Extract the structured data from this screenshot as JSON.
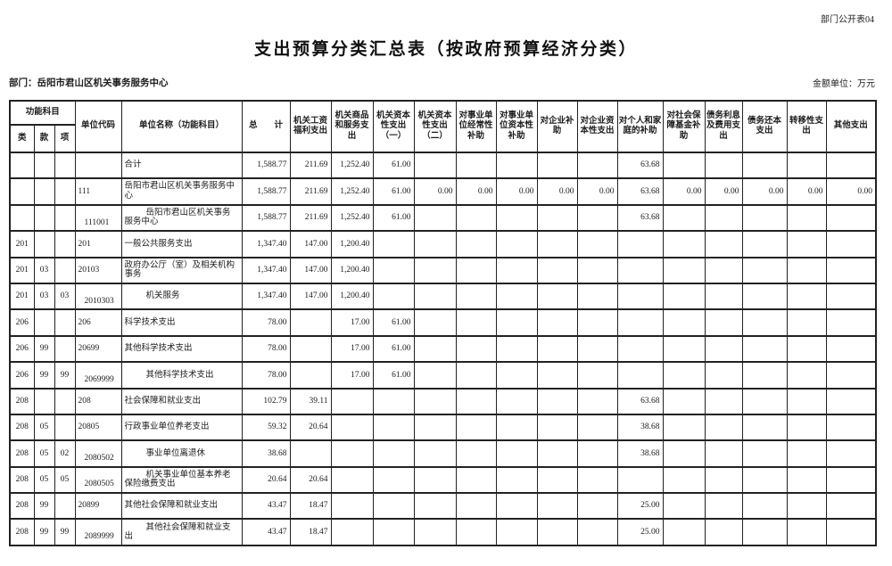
{
  "page": {
    "doc_label": "部门公开表04",
    "title": "支出预算分类汇总表（按政府预算经济分类）",
    "department": "部门：岳阳市君山区机关事务服务中心",
    "unit_note": "金额单位：万元"
  },
  "table": {
    "func_group_label": "功能科目",
    "func_cols": [
      "类",
      "款",
      "项"
    ],
    "columns": [
      "单位代码",
      "单位名称（功能科目）",
      "总　　计",
      "机关工资福利支出",
      "机关商品和服务支出",
      "机关资本性支出（一）",
      "机关资本性支出（二）",
      "对事业单位经常性补助",
      "对事业单位资本性补助",
      "对企业补助",
      "对企业资本性支出",
      "对个人和家庭的补助",
      "对社会保障基金补助",
      "债务利息及费用支出",
      "债务还本支出",
      "转移性支出",
      "其他支出"
    ],
    "rows": [
      {
        "lei": "",
        "kuan": "",
        "xiang": "",
        "code": "",
        "name": "合计",
        "indent": false,
        "values": [
          "1,588.77",
          "211.69",
          "1,252.40",
          "61.00",
          "",
          "",
          "",
          "",
          "",
          "63.68",
          "",
          "",
          "",
          "",
          ""
        ]
      },
      {
        "lei": "",
        "kuan": "",
        "xiang": "",
        "code": "111",
        "name": "岳阳市君山区机关事务服务中心",
        "indent": false,
        "values": [
          "1,588.77",
          "211.69",
          "1,252.40",
          "61.00",
          "0.00",
          "0.00",
          "0.00",
          "0.00",
          "0.00",
          "63.68",
          "0.00",
          "0.00",
          "0.00",
          "0.00",
          "0.00"
        ]
      },
      {
        "lei": "",
        "kuan": "",
        "xiang": "",
        "code": "111001",
        "name": "岳阳市君山区机关事务服务中心",
        "indent": true,
        "values": [
          "1,588.77",
          "211.69",
          "1,252.40",
          "61.00",
          "",
          "",
          "",
          "",
          "",
          "63.68",
          "",
          "",
          "",
          "",
          ""
        ]
      },
      {
        "lei": "201",
        "kuan": "",
        "xiang": "",
        "code": "201",
        "name": "一般公共服务支出",
        "indent": false,
        "values": [
          "1,347.40",
          "147.00",
          "1,200.40",
          "",
          "",
          "",
          "",
          "",
          "",
          "",
          "",
          "",
          "",
          "",
          ""
        ]
      },
      {
        "lei": "201",
        "kuan": "03",
        "xiang": "",
        "code": "20103",
        "name": "政府办公厅（室）及相关机构事务",
        "indent": false,
        "values": [
          "1,347.40",
          "147.00",
          "1,200.40",
          "",
          "",
          "",
          "",
          "",
          "",
          "",
          "",
          "",
          "",
          "",
          ""
        ]
      },
      {
        "lei": "201",
        "kuan": "03",
        "xiang": "03",
        "code": "2010303",
        "name": "机关服务",
        "indent": true,
        "values": [
          "1,347.40",
          "147.00",
          "1,200.40",
          "",
          "",
          "",
          "",
          "",
          "",
          "",
          "",
          "",
          "",
          "",
          ""
        ]
      },
      {
        "lei": "206",
        "kuan": "",
        "xiang": "",
        "code": "206",
        "name": "科学技术支出",
        "indent": false,
        "values": [
          "78.00",
          "",
          "17.00",
          "61.00",
          "",
          "",
          "",
          "",
          "",
          "",
          "",
          "",
          "",
          "",
          ""
        ]
      },
      {
        "lei": "206",
        "kuan": "99",
        "xiang": "",
        "code": "20699",
        "name": "其他科学技术支出",
        "indent": false,
        "values": [
          "78.00",
          "",
          "17.00",
          "61.00",
          "",
          "",
          "",
          "",
          "",
          "",
          "",
          "",
          "",
          "",
          ""
        ]
      },
      {
        "lei": "206",
        "kuan": "99",
        "xiang": "99",
        "code": "2069999",
        "name": "其他科学技术支出",
        "indent": true,
        "values": [
          "78.00",
          "",
          "17.00",
          "61.00",
          "",
          "",
          "",
          "",
          "",
          "",
          "",
          "",
          "",
          "",
          ""
        ]
      },
      {
        "lei": "208",
        "kuan": "",
        "xiang": "",
        "code": "208",
        "name": "社会保障和就业支出",
        "indent": false,
        "values": [
          "102.79",
          "39.11",
          "",
          "",
          "",
          "",
          "",
          "",
          "",
          "63.68",
          "",
          "",
          "",
          "",
          ""
        ]
      },
      {
        "lei": "208",
        "kuan": "05",
        "xiang": "",
        "code": "20805",
        "name": "行政事业单位养老支出",
        "indent": false,
        "values": [
          "59.32",
          "20.64",
          "",
          "",
          "",
          "",
          "",
          "",
          "",
          "38.68",
          "",
          "",
          "",
          "",
          ""
        ]
      },
      {
        "lei": "208",
        "kuan": "05",
        "xiang": "02",
        "code": "2080502",
        "name": "事业单位离退休",
        "indent": true,
        "values": [
          "38.68",
          "",
          "",
          "",
          "",
          "",
          "",
          "",
          "",
          "38.68",
          "",
          "",
          "",
          "",
          ""
        ]
      },
      {
        "lei": "208",
        "kuan": "05",
        "xiang": "05",
        "code": "2080505",
        "name": "机关事业单位基本养老保险缴费支出",
        "indent": true,
        "values": [
          "20.64",
          "20.64",
          "",
          "",
          "",
          "",
          "",
          "",
          "",
          "",
          "",
          "",
          "",
          "",
          ""
        ]
      },
      {
        "lei": "208",
        "kuan": "99",
        "xiang": "",
        "code": "20899",
        "name": "其他社会保障和就业支出",
        "indent": false,
        "values": [
          "43.47",
          "18.47",
          "",
          "",
          "",
          "",
          "",
          "",
          "",
          "25.00",
          "",
          "",
          "",
          "",
          ""
        ]
      },
      {
        "lei": "208",
        "kuan": "99",
        "xiang": "99",
        "code": "2089999",
        "name": "其他社会保障和就业支出",
        "indent": true,
        "values": [
          "43.47",
          "18.47",
          "",
          "",
          "",
          "",
          "",
          "",
          "",
          "25.00",
          "",
          "",
          "",
          "",
          ""
        ]
      }
    ]
  }
}
